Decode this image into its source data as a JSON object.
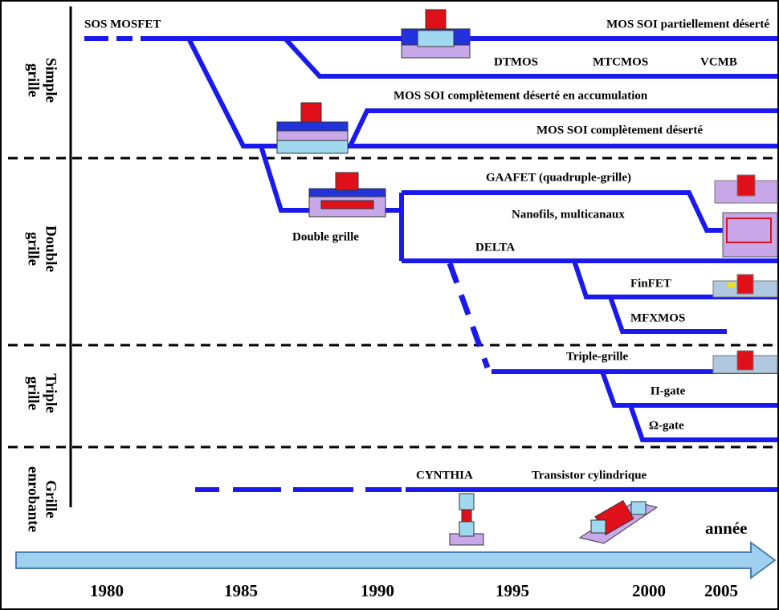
{
  "sections": [
    [
      "Simple",
      "grille"
    ],
    [
      "Double",
      "grille"
    ],
    [
      "Triple",
      "grille"
    ],
    [
      "Grille",
      "enrobante"
    ]
  ],
  "labels": [
    "SOS MOSFET",
    "MOS SOI partiellement déserté",
    "DTMOS",
    "MTCMOS",
    "VCMB",
    "MOS SOI complètement déserté en accumulation",
    "MOS SOI complètement déserté",
    "GAAFET (quadruple-grille)",
    "Nanofils, multicanaux",
    "Double grille",
    "DELTA",
    "FinFET",
    "MFXMOS",
    "Triple-grille",
    "Π-gate",
    "Ω-gate",
    "CYNTHIA",
    "Transistor cylindrique"
  ],
  "timeline": {
    "label": "année",
    "years": [
      "1980",
      "1985",
      "1990",
      "1995",
      "2000",
      "2005"
    ]
  }
}
